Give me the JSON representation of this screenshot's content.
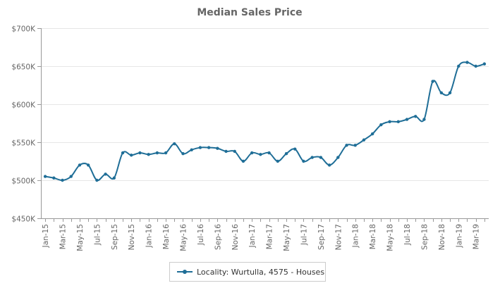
{
  "chart_data": {
    "type": "line",
    "title": "Median Sales Price",
    "xlabel": "",
    "ylabel": "",
    "ylim": [
      450000,
      700000
    ],
    "y_ticks": [
      450000,
      500000,
      550000,
      600000,
      650000,
      700000
    ],
    "y_tick_labels": [
      "$450K",
      "$500K",
      "$550K",
      "$600K",
      "$650K",
      "$700K"
    ],
    "x_tick_labels": [
      "Jan-15",
      "Mar-15",
      "May-15",
      "Jul-15",
      "Sep-15",
      "Nov-15",
      "Jan-16",
      "Mar-16",
      "May-16",
      "Jul-16",
      "Sep-16",
      "Nov-16",
      "Jan-17",
      "Mar-17",
      "May-17",
      "Jul-17",
      "Sep-17",
      "Nov-17",
      "Jan-18",
      "Mar-18",
      "May-18",
      "Jul-18",
      "Sep-18",
      "Nov-18",
      "Jan-19",
      "Mar-19"
    ],
    "categories": [
      "Jan-15",
      "Feb-15",
      "Mar-15",
      "Apr-15",
      "May-15",
      "Jun-15",
      "Jul-15",
      "Aug-15",
      "Sep-15",
      "Oct-15",
      "Nov-15",
      "Dec-15",
      "Jan-16",
      "Feb-16",
      "Mar-16",
      "Apr-16",
      "May-16",
      "Jun-16",
      "Jul-16",
      "Aug-16",
      "Sep-16",
      "Oct-16",
      "Nov-16",
      "Dec-16",
      "Jan-17",
      "Feb-17",
      "Mar-17",
      "Apr-17",
      "May-17",
      "Jun-17",
      "Jul-17",
      "Aug-17",
      "Sep-17",
      "Oct-17",
      "Nov-17",
      "Dec-17",
      "Jan-18",
      "Feb-18",
      "Mar-18",
      "Apr-18",
      "May-18",
      "Jun-18",
      "Jul-18",
      "Aug-18",
      "Sep-18",
      "Oct-18",
      "Nov-18",
      "Dec-18",
      "Jan-19",
      "Feb-19",
      "Mar-19",
      "Apr-19"
    ],
    "series": [
      {
        "name": "Locality: Wurtulla, 4575 - Houses",
        "color": "#1f6e97",
        "values": [
          505000,
          503000,
          500000,
          505000,
          520000,
          520000,
          500000,
          508000,
          503000,
          536000,
          533000,
          536000,
          534000,
          536000,
          536000,
          548000,
          535000,
          540000,
          543000,
          543000,
          542000,
          538000,
          538000,
          525000,
          536000,
          534000,
          536000,
          525000,
          535000,
          541000,
          525000,
          530000,
          530000,
          520000,
          530000,
          546000,
          546000,
          553000,
          561000,
          573000,
          577000,
          577000,
          580000,
          584000,
          580000,
          630000,
          615000,
          615000,
          650000,
          655000,
          650000,
          653000
        ]
      }
    ],
    "grid": "horizontal",
    "legend_position": "bottom"
  }
}
